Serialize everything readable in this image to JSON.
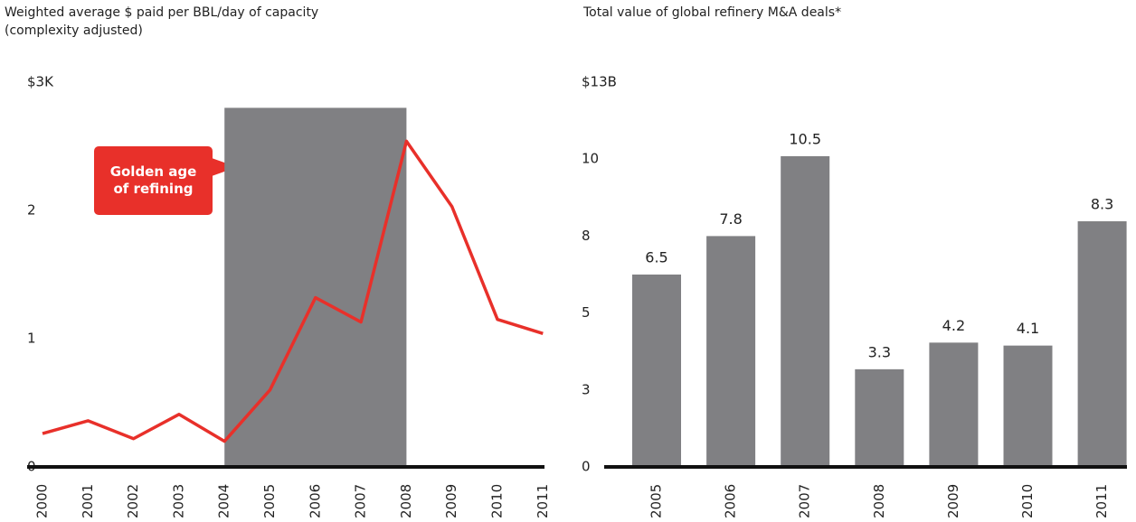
{
  "chart_data": [
    {
      "type": "line",
      "title": [
        "Weighted average $ paid per BBL/day of capacity",
        "(complexity adjusted)"
      ],
      "categories": [
        "2000",
        "2001",
        "2002",
        "2003",
        "2004",
        "2005",
        "2006",
        "2007",
        "2008",
        "2009",
        "2010",
        "2011"
      ],
      "values": [
        0.26,
        0.36,
        0.22,
        0.41,
        0.2,
        0.6,
        1.32,
        1.13,
        2.54,
        2.03,
        1.15,
        1.04
      ],
      "color": "#e8302a",
      "ylim": [
        0,
        3
      ],
      "yticks": [
        0,
        1,
        2,
        {
          "value": 3,
          "label": "$3K"
        }
      ],
      "highlight": {
        "start": "2004",
        "end": "2008",
        "top": 2.8,
        "color": "#808083"
      },
      "annotation": "Golden age of refining"
    },
    {
      "type": "bar",
      "title": [
        "Total value of global refinery M&A deals*"
      ],
      "categories": [
        "2005",
        "2006",
        "2007",
        "2008",
        "2009",
        "2010",
        "2011"
      ],
      "values": [
        6.5,
        7.8,
        10.5,
        3.3,
        4.2,
        4.1,
        8.3
      ],
      "color": "#808083",
      "ylim": [
        0,
        13
      ],
      "yticks": [
        0,
        {
          "value": 2.6,
          "label": "3"
        },
        {
          "value": 5.2,
          "label": "5"
        },
        {
          "value": 7.8,
          "label": "8"
        },
        {
          "value": 10.4,
          "label": "10"
        },
        {
          "value": 13,
          "label": "$13B"
        }
      ]
    }
  ]
}
